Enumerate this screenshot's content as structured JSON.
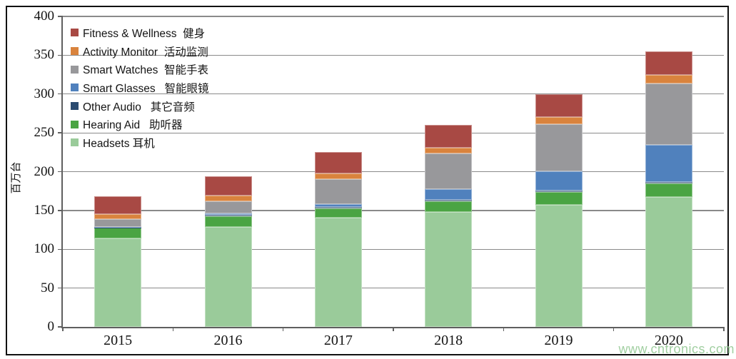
{
  "page": {
    "watermark": "www.cntronics.com"
  },
  "chart_data": {
    "type": "bar",
    "stacked": true,
    "title": "",
    "xlabel": "",
    "ylabel": "百万台",
    "ylim": [
      0,
      400
    ],
    "ytick_step": 50,
    "yticks": [
      0,
      50,
      100,
      150,
      200,
      250,
      300,
      350,
      400
    ],
    "grid": true,
    "legend_position": "top-left-inside",
    "categories": [
      "2015",
      "2016",
      "2017",
      "2018",
      "2019",
      "2020"
    ],
    "series": [
      {
        "key": "fitness-wellness",
        "name": "Fitness & Wellness  健身",
        "color": "#A84944",
        "values": [
          23,
          25,
          27,
          29,
          30,
          30
        ]
      },
      {
        "key": "activity-monitor",
        "name": "Activity Monitor  活动监测",
        "color": "#D9833D",
        "values": [
          6.5,
          7,
          7.5,
          7.5,
          9,
          11
        ]
      },
      {
        "key": "smart-watches",
        "name": "Smart Watches  智能手表",
        "color": "#98989B",
        "values": [
          10,
          16,
          32.5,
          46,
          60.5,
          79.5
        ]
      },
      {
        "key": "smart-glasses",
        "name": "Smart Glasses   智能眼镜",
        "color": "#5081BD",
        "values": [
          0.5,
          2,
          3.5,
          14,
          24.5,
          47.5
        ]
      },
      {
        "key": "other-audio",
        "name": "Other Audio   其它音频",
        "color": "#2B4B70",
        "values": [
          0.5,
          1,
          2,
          2,
          2.5,
          2
        ]
      },
      {
        "key": "hearing-aid",
        "name": "Hearing Aid   助听器",
        "color": "#4AA443",
        "values": [
          13.5,
          14,
          12,
          13.5,
          16.5,
          17.5
        ]
      },
      {
        "key": "headsets",
        "name": "Headsets 耳机",
        "color": "#9ACB9A",
        "values": [
          114,
          129,
          140.5,
          148,
          157,
          167.5
        ]
      }
    ],
    "stack_order_bottom_to_top": [
      "headsets",
      "hearing-aid",
      "other-audio",
      "smart-glasses",
      "smart-watches",
      "activity-monitor",
      "fitness-wellness"
    ],
    "totals": [
      168,
      194,
      225,
      260,
      300,
      355
    ]
  }
}
